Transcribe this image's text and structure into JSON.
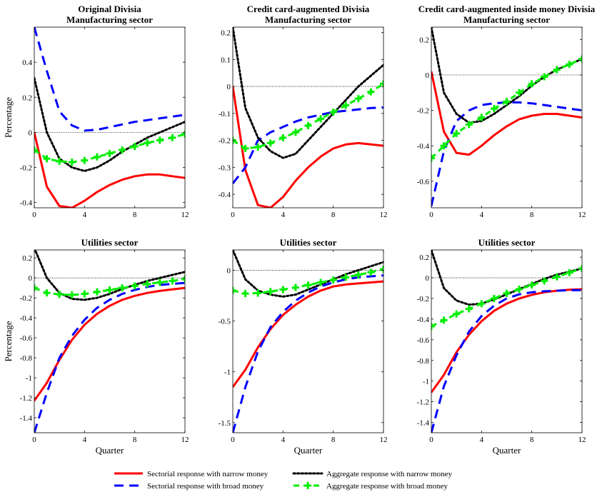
{
  "colors": {
    "sectoral_narrow": "#ff0000",
    "sectoral_broad": "#0000ff",
    "aggregate_narrow": "#000000",
    "aggregate_broad": "#00ee00",
    "zero_line": "#000000"
  },
  "legend": {
    "items": [
      {
        "label": "Sectorial response with narrow money",
        "style": "solid",
        "color": "#ff0000"
      },
      {
        "label": "Aggregate response with narrow money",
        "style": "dotted",
        "color": "#000000"
      },
      {
        "label": "Sectorial response with broad money",
        "style": "dashed",
        "color": "#0000ff"
      },
      {
        "label": "Aggregate response with broad money",
        "style": "dash-plus",
        "color": "#00ee00"
      }
    ]
  },
  "chart_data": [
    {
      "type": "line",
      "title": [
        "Original Divisia",
        "Manufacturing sector"
      ],
      "xlabel": "",
      "ylabel": "Percentage",
      "xlim": [
        0,
        12
      ],
      "ylim": [
        -0.43,
        0.6
      ],
      "xticks": [
        0,
        4,
        8,
        12
      ],
      "yticks": [
        -0.4,
        -0.2,
        0,
        0.2,
        0.4
      ],
      "ytick_labels": [
        "-0.4",
        "-0.2",
        "0",
        "0.2",
        "0.4"
      ],
      "x": [
        0,
        1,
        2,
        3,
        4,
        5,
        6,
        7,
        8,
        9,
        10,
        11,
        12
      ],
      "series": [
        {
          "key": "sectoral_narrow",
          "values": [
            0,
            -0.31,
            -0.42,
            -0.43,
            -0.39,
            -0.34,
            -0.3,
            -0.27,
            -0.25,
            -0.24,
            -0.24,
            -0.25,
            -0.26
          ]
        },
        {
          "key": "sectoral_broad",
          "values": [
            0.6,
            0.35,
            0.12,
            0.04,
            0.01,
            0.015,
            0.03,
            0.045,
            0.06,
            0.07,
            0.08,
            0.09,
            0.1
          ]
        },
        {
          "key": "aggregate_narrow",
          "values": [
            0.31,
            0.0,
            -0.15,
            -0.2,
            -0.22,
            -0.2,
            -0.16,
            -0.11,
            -0.07,
            -0.03,
            0.0,
            0.03,
            0.06
          ]
        },
        {
          "key": "aggregate_broad",
          "values": [
            -0.1,
            -0.15,
            -0.165,
            -0.17,
            -0.16,
            -0.14,
            -0.12,
            -0.1,
            -0.08,
            -0.06,
            -0.045,
            -0.03,
            -0.01
          ]
        }
      ]
    },
    {
      "type": "line",
      "title": [
        "Credit card-augmented Divisia",
        "Manufacturing sector"
      ],
      "xlabel": "",
      "ylabel": "",
      "xlim": [
        0,
        12
      ],
      "ylim": [
        -0.45,
        0.22
      ],
      "xticks": [
        0,
        4,
        8,
        12
      ],
      "yticks": [
        -0.4,
        -0.3,
        -0.2,
        -0.1,
        0,
        0.1,
        0.2
      ],
      "ytick_labels": [
        "-0.4",
        "-0.3",
        "-0.2",
        "-0.1",
        "0",
        "0.1",
        "0.2"
      ],
      "x": [
        0,
        1,
        2,
        3,
        4,
        5,
        6,
        7,
        8,
        9,
        10,
        11,
        12
      ],
      "series": [
        {
          "key": "sectoral_narrow",
          "values": [
            0,
            -0.31,
            -0.44,
            -0.45,
            -0.41,
            -0.35,
            -0.3,
            -0.26,
            -0.23,
            -0.215,
            -0.21,
            -0.215,
            -0.22
          ]
        },
        {
          "key": "sectoral_broad",
          "values": [
            -0.36,
            -0.3,
            -0.2,
            -0.17,
            -0.15,
            -0.13,
            -0.115,
            -0.105,
            -0.095,
            -0.09,
            -0.085,
            -0.08,
            -0.078
          ]
        },
        {
          "key": "aggregate_narrow",
          "values": [
            0.22,
            -0.08,
            -0.19,
            -0.24,
            -0.265,
            -0.25,
            -0.2,
            -0.15,
            -0.1,
            -0.05,
            0.0,
            0.04,
            0.08
          ]
        },
        {
          "key": "aggregate_broad",
          "values": [
            -0.2,
            -0.23,
            -0.225,
            -0.21,
            -0.19,
            -0.17,
            -0.145,
            -0.12,
            -0.095,
            -0.07,
            -0.045,
            -0.02,
            0.01
          ]
        }
      ]
    },
    {
      "type": "line",
      "title": [
        "Credit card-augmented inside money Divisia",
        "Manufacturing sector"
      ],
      "xlabel": "",
      "ylabel": "",
      "xlim": [
        0,
        12
      ],
      "ylim": [
        -0.75,
        0.27
      ],
      "xticks": [
        0,
        4,
        8,
        12
      ],
      "yticks": [
        -0.6,
        -0.4,
        -0.2,
        0,
        0.2
      ],
      "ytick_labels": [
        "-0.6",
        "-0.4",
        "-0.2",
        "0",
        "0.2"
      ],
      "x": [
        0,
        1,
        2,
        3,
        4,
        5,
        6,
        7,
        8,
        9,
        10,
        11,
        12
      ],
      "series": [
        {
          "key": "sectoral_narrow",
          "values": [
            0.02,
            -0.32,
            -0.44,
            -0.45,
            -0.4,
            -0.34,
            -0.29,
            -0.25,
            -0.23,
            -0.22,
            -0.22,
            -0.23,
            -0.24
          ]
        },
        {
          "key": "sectoral_broad",
          "values": [
            -0.74,
            -0.43,
            -0.26,
            -0.2,
            -0.17,
            -0.16,
            -0.155,
            -0.155,
            -0.16,
            -0.17,
            -0.18,
            -0.19,
            -0.2
          ]
        },
        {
          "key": "aggregate_narrow",
          "values": [
            0.27,
            -0.1,
            -0.22,
            -0.27,
            -0.26,
            -0.22,
            -0.17,
            -0.12,
            -0.06,
            -0.01,
            0.03,
            0.06,
            0.09
          ]
        },
        {
          "key": "aggregate_broad",
          "values": [
            -0.47,
            -0.4,
            -0.33,
            -0.28,
            -0.24,
            -0.19,
            -0.15,
            -0.1,
            -0.05,
            -0.01,
            0.03,
            0.06,
            0.09
          ]
        }
      ]
    },
    {
      "type": "line",
      "title": [
        "Utilities sector"
      ],
      "xlabel": "Quarter",
      "ylabel": "Percentage",
      "xlim": [
        0,
        12
      ],
      "ylim": [
        -1.55,
        0.28
      ],
      "xticks": [
        0,
        4,
        8,
        12
      ],
      "yticks": [
        -1.4,
        -1.2,
        -1,
        -0.8,
        -0.6,
        -0.4,
        -0.2,
        0,
        0.2
      ],
      "ytick_labels": [
        "-1.4",
        "-1.2",
        "-1",
        "-0.8",
        "-0.6",
        "-0.4",
        "-0.2",
        "0",
        "0.2"
      ],
      "x": [
        0,
        1,
        2,
        3,
        4,
        5,
        6,
        7,
        8,
        9,
        10,
        11,
        12
      ],
      "series": [
        {
          "key": "sectoral_narrow",
          "values": [
            -1.23,
            -1.05,
            -0.82,
            -0.62,
            -0.47,
            -0.36,
            -0.28,
            -0.22,
            -0.18,
            -0.15,
            -0.13,
            -0.115,
            -0.1
          ]
        },
        {
          "key": "sectoral_broad",
          "values": [
            -1.55,
            -1.15,
            -0.8,
            -0.58,
            -0.42,
            -0.3,
            -0.22,
            -0.16,
            -0.12,
            -0.09,
            -0.07,
            -0.06,
            -0.05
          ]
        },
        {
          "key": "aggregate_narrow",
          "values": [
            0.3,
            0.0,
            -0.15,
            -0.21,
            -0.22,
            -0.2,
            -0.16,
            -0.11,
            -0.07,
            -0.03,
            0.0,
            0.03,
            0.06
          ]
        },
        {
          "key": "aggregate_broad",
          "values": [
            -0.1,
            -0.15,
            -0.165,
            -0.17,
            -0.16,
            -0.14,
            -0.12,
            -0.1,
            -0.08,
            -0.06,
            -0.045,
            -0.03,
            -0.01
          ]
        }
      ]
    },
    {
      "type": "line",
      "title": [
        "Utilities sector"
      ],
      "xlabel": "Quarter",
      "ylabel": "",
      "xlim": [
        0,
        12
      ],
      "ylim": [
        -1.6,
        0.2
      ],
      "xticks": [
        0,
        4,
        8,
        12
      ],
      "yticks": [
        -1.5,
        -1,
        -0.5,
        0
      ],
      "ytick_labels": [
        "-1.5",
        "-1",
        "-0.5",
        "0"
      ],
      "x": [
        0,
        1,
        2,
        3,
        4,
        5,
        6,
        7,
        8,
        9,
        10,
        11,
        12
      ],
      "series": [
        {
          "key": "sectoral_narrow",
          "values": [
            -1.15,
            -0.98,
            -0.76,
            -0.58,
            -0.44,
            -0.34,
            -0.26,
            -0.2,
            -0.16,
            -0.14,
            -0.13,
            -0.12,
            -0.11
          ]
        },
        {
          "key": "sectoral_broad",
          "values": [
            -1.6,
            -1.15,
            -0.8,
            -0.56,
            -0.41,
            -0.3,
            -0.22,
            -0.16,
            -0.12,
            -0.09,
            -0.07,
            -0.06,
            -0.05
          ]
        },
        {
          "key": "aggregate_narrow",
          "values": [
            0.2,
            -0.09,
            -0.2,
            -0.24,
            -0.26,
            -0.24,
            -0.19,
            -0.14,
            -0.09,
            -0.04,
            0.0,
            0.04,
            0.08
          ]
        },
        {
          "key": "aggregate_broad",
          "values": [
            -0.2,
            -0.23,
            -0.225,
            -0.21,
            -0.19,
            -0.17,
            -0.145,
            -0.12,
            -0.095,
            -0.07,
            -0.045,
            -0.02,
            0.01
          ]
        }
      ]
    },
    {
      "type": "line",
      "title": [
        "Utilities sector"
      ],
      "xlabel": "Quarter",
      "ylabel": "",
      "xlim": [
        0,
        12
      ],
      "ylim": [
        -1.5,
        0.27
      ],
      "xticks": [
        0,
        4,
        8,
        12
      ],
      "yticks": [
        -1.4,
        -1.2,
        -1,
        -0.8,
        -0.6,
        -0.4,
        -0.2,
        0,
        0.2
      ],
      "ytick_labels": [
        "-1.4",
        "-1.2",
        "-1",
        "-0.8",
        "-0.6",
        "-0.4",
        "-0.2",
        "0",
        "0.2"
      ],
      "x": [
        0,
        1,
        2,
        3,
        4,
        5,
        6,
        7,
        8,
        9,
        10,
        11,
        12
      ],
      "series": [
        {
          "key": "sectoral_narrow",
          "values": [
            -1.11,
            -0.94,
            -0.72,
            -0.55,
            -0.42,
            -0.32,
            -0.25,
            -0.2,
            -0.165,
            -0.14,
            -0.125,
            -0.115,
            -0.11
          ]
        },
        {
          "key": "sectoral_broad",
          "values": [
            -1.5,
            -1.05,
            -0.75,
            -0.52,
            -0.37,
            -0.27,
            -0.2,
            -0.16,
            -0.14,
            -0.13,
            -0.125,
            -0.12,
            -0.12
          ]
        },
        {
          "key": "aggregate_narrow",
          "values": [
            0.27,
            -0.1,
            -0.22,
            -0.26,
            -0.25,
            -0.21,
            -0.16,
            -0.11,
            -0.06,
            -0.01,
            0.03,
            0.06,
            0.09
          ]
        },
        {
          "key": "aggregate_broad",
          "values": [
            -0.47,
            -0.41,
            -0.35,
            -0.3,
            -0.25,
            -0.2,
            -0.15,
            -0.11,
            -0.07,
            -0.03,
            0.01,
            0.05,
            0.09
          ]
        }
      ]
    }
  ]
}
